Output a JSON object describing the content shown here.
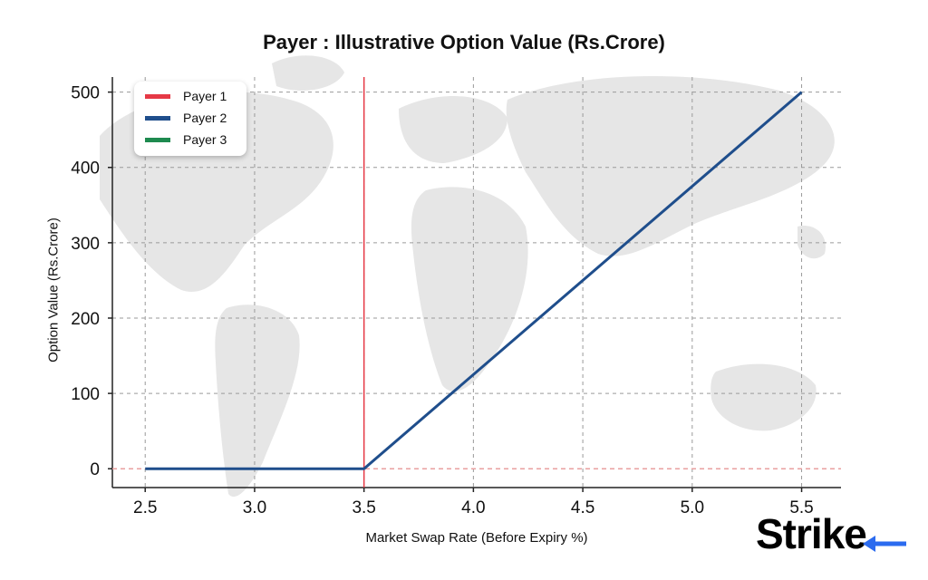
{
  "chart_data": {
    "type": "line",
    "title": "Payer : Illustrative Option Value (Rs.Crore)",
    "xlabel": "Market Swap Rate (Before Expiry %)",
    "ylabel": "Option Value (Rs.Crore)",
    "xlim": [
      2.35,
      5.68
    ],
    "ylim": [
      -25,
      520
    ],
    "xticks": [
      2.5,
      3.0,
      3.5,
      4.0,
      4.5,
      5.0,
      5.5
    ],
    "xtick_labels": [
      "2.5",
      "3.0",
      "3.5",
      "4.0",
      "4.5",
      "5.0",
      "5.5"
    ],
    "yticks": [
      0,
      100,
      200,
      300,
      400,
      500
    ],
    "ytick_labels": [
      "0",
      "100",
      "200",
      "300",
      "400",
      "500"
    ],
    "grid": true,
    "legend_position": "top-left",
    "series": [
      {
        "name": "Payer 1",
        "color": "#e63946",
        "x": [],
        "y": []
      },
      {
        "name": "Payer 2",
        "color": "#1f4e8c",
        "x": [
          2.5,
          3.5,
          5.5
        ],
        "y": [
          0,
          0,
          500
        ]
      },
      {
        "name": "Payer 3",
        "color": "#1e8a4f",
        "x": [],
        "y": []
      }
    ],
    "annotations": [
      {
        "type": "vline",
        "x": 3.5,
        "color": "#e63946"
      },
      {
        "type": "hline",
        "y": 0,
        "color": "#e9a0a0",
        "style": "dashed"
      }
    ]
  },
  "logo": {
    "text_a": "Stri",
    "text_b": "k",
    "text_c": "e",
    "accent_color": "#2b6bef",
    "icon": "arrow-left-icon"
  }
}
